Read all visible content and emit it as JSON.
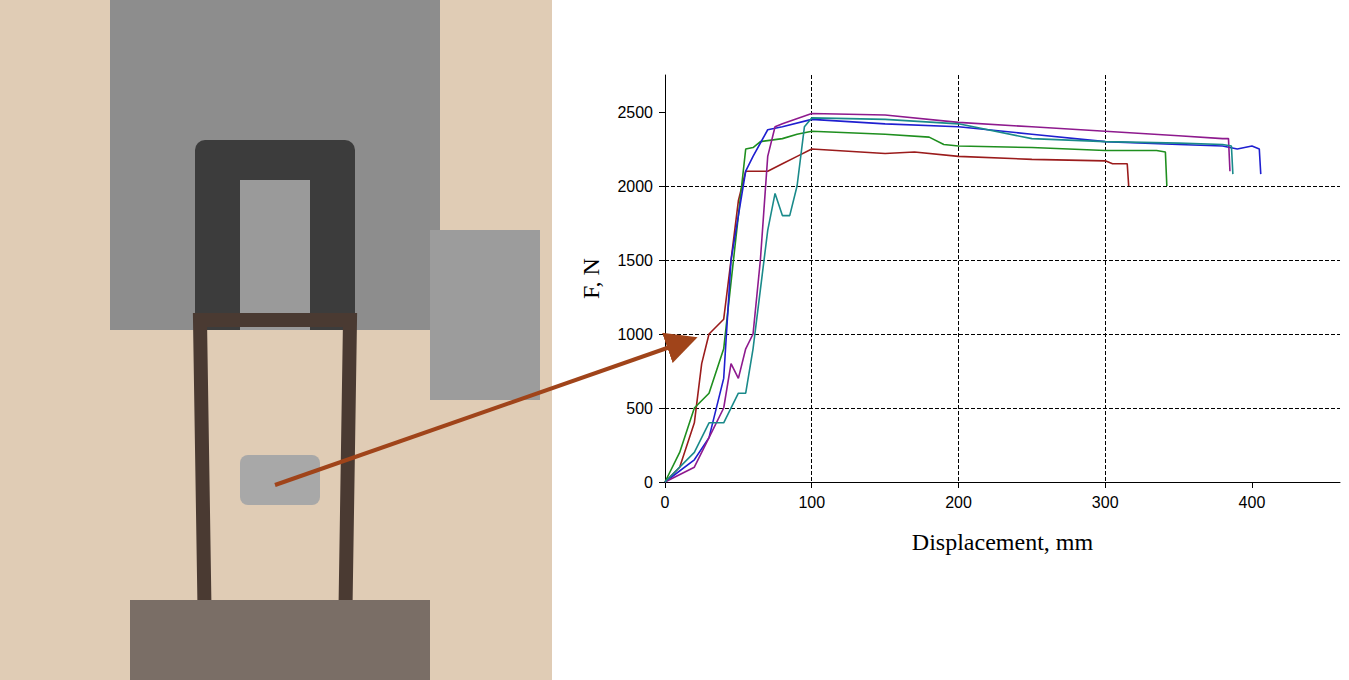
{
  "chart_data": {
    "type": "line",
    "xlabel": "Displacement, mm",
    "ylabel": "F, N",
    "xlim": [
      0,
      460
    ],
    "xticks": [
      0,
      100,
      200,
      300,
      400
    ],
    "ylim": [
      0,
      2750
    ],
    "yticks": [
      0,
      500,
      1000,
      1500,
      2000,
      2500
    ],
    "grid": true,
    "series": [
      {
        "color": "#9b1c1c",
        "x": [
          0,
          10,
          20,
          25,
          30,
          40,
          45,
          50,
          55,
          70,
          80,
          90,
          100,
          150,
          170,
          200,
          250,
          300,
          305,
          315,
          316
        ],
        "values": [
          0,
          100,
          400,
          800,
          1000,
          1100,
          1500,
          1900,
          2100,
          2100,
          2150,
          2200,
          2250,
          2220,
          2230,
          2200,
          2180,
          2170,
          2150,
          2150,
          2000
        ]
      },
      {
        "color": "#1f8f1f",
        "x": [
          0,
          10,
          20,
          30,
          40,
          50,
          55,
          60,
          65,
          80,
          90,
          100,
          150,
          180,
          190,
          200,
          250,
          300,
          335,
          341,
          342
        ],
        "values": [
          0,
          200,
          500,
          600,
          900,
          1800,
          2250,
          2260,
          2300,
          2320,
          2350,
          2370,
          2350,
          2330,
          2280,
          2270,
          2260,
          2240,
          2240,
          2230,
          2000
        ]
      },
      {
        "color": "#1f1fd0",
        "x": [
          0,
          20,
          30,
          40,
          45,
          50,
          55,
          60,
          70,
          80,
          100,
          150,
          200,
          250,
          300,
          350,
          380,
          390,
          400,
          405,
          406
        ],
        "values": [
          0,
          150,
          300,
          700,
          1500,
          1800,
          2100,
          2200,
          2380,
          2400,
          2450,
          2420,
          2400,
          2350,
          2300,
          2280,
          2270,
          2250,
          2270,
          2250,
          2080
        ]
      },
      {
        "color": "#8e1a8e",
        "x": [
          0,
          20,
          30,
          40,
          45,
          50,
          55,
          60,
          65,
          70,
          75,
          80,
          100,
          150,
          200,
          250,
          300,
          350,
          380,
          384,
          385
        ],
        "values": [
          0,
          100,
          300,
          500,
          800,
          700,
          900,
          1000,
          1500,
          2200,
          2400,
          2420,
          2490,
          2480,
          2430,
          2400,
          2370,
          2340,
          2320,
          2320,
          2100
        ]
      },
      {
        "color": "#1a8a8a",
        "x": [
          0,
          20,
          30,
          40,
          50,
          55,
          60,
          65,
          70,
          75,
          80,
          85,
          90,
          95,
          100,
          150,
          200,
          250,
          300,
          350,
          380,
          386,
          387
        ],
        "values": [
          0,
          200,
          400,
          400,
          600,
          600,
          900,
          1300,
          1700,
          1950,
          1800,
          1800,
          2000,
          2400,
          2460,
          2450,
          2420,
          2320,
          2300,
          2290,
          2280,
          2270,
          2080
        ]
      }
    ]
  }
}
